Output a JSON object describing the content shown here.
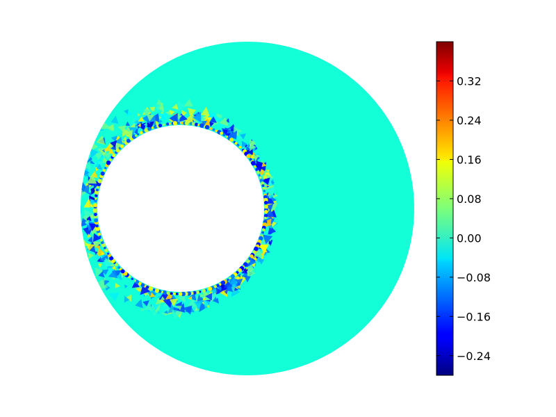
{
  "chart_data": {
    "type": "heatmap",
    "title": "",
    "xlabel": "",
    "ylabel": "",
    "domain": "annulus",
    "background_value": 0.0,
    "colormap": "jet",
    "colorbar": {
      "vmin": -0.28,
      "vmax": 0.4,
      "ticks": [
        -0.24,
        -0.16,
        -0.08,
        0.0,
        0.08,
        0.16,
        0.24,
        0.32
      ],
      "tick_labels": [
        "−0.24",
        "−0.16",
        "−0.08",
        "0.00",
        "0.08",
        "0.16",
        "0.24",
        "0.32"
      ],
      "placement": "right"
    },
    "field_notes": "Nearly uniform 0.00 field with small oscillating values (about -0.24 to 0.16) concentrated in a band around the inner hole"
  }
}
